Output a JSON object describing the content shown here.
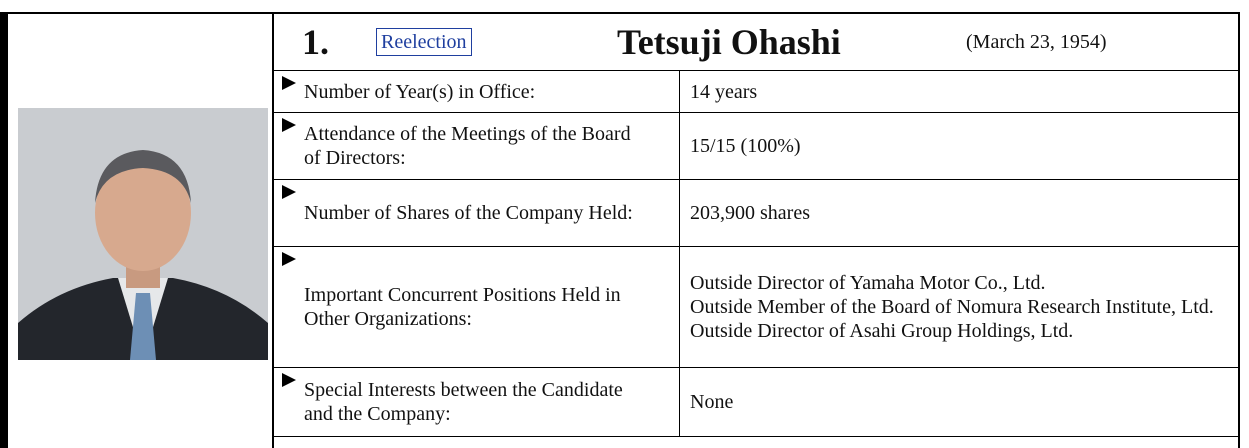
{
  "header": {
    "number": "1.",
    "tag": "Reelection",
    "name": "Tetsuji Ohashi",
    "birth": "(March 23, 1954)"
  },
  "rows": [
    {
      "label": "Number of Year(s) in Office:",
      "value": [
        "14 years"
      ]
    },
    {
      "label": "Attendance of the Meetings of the Board of Directors:",
      "value": [
        "15/15 (100%)"
      ]
    },
    {
      "label": "Number of Shares of the Company Held:",
      "value": [
        "203,900 shares"
      ]
    },
    {
      "label": "Important Concurrent Positions Held in Other Organizations:",
      "value": [
        "Outside Director of Yamaha Motor Co., Ltd.",
        "Outside Member of the Board of Nomura Research Institute, Ltd.",
        "Outside Director of Asahi Group Holdings, Ltd."
      ]
    },
    {
      "label": "Special Interests between the Candidate and the Company:",
      "value": [
        "None"
      ]
    }
  ]
}
